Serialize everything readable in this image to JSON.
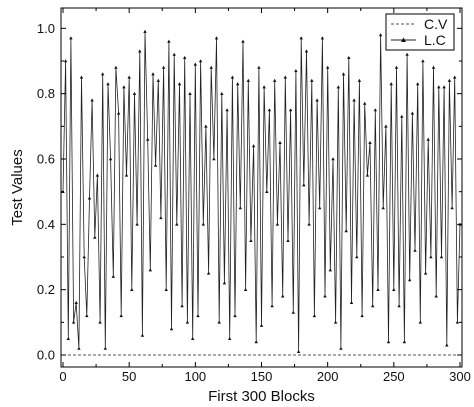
{
  "chart_data": {
    "type": "line",
    "xlabel": "First 300 Blocks",
    "ylabel": "Test Values",
    "xlim": [
      0,
      300
    ],
    "ylim": [
      0,
      1.05
    ],
    "xticks": [
      0,
      50,
      100,
      150,
      200,
      250,
      300
    ],
    "yticks": [
      0.0,
      0.2,
      0.4,
      0.6,
      0.8,
      1.0
    ],
    "xtick_labels": [
      "0",
      "50",
      "100",
      "150",
      "200",
      "250",
      "300"
    ],
    "ytick_labels": [
      "0.0",
      "0.2",
      "0.4",
      "0.6",
      "0.8",
      "1.0"
    ],
    "grid": false,
    "legend_position": "top-right",
    "series": [
      {
        "name": "C.V",
        "style": "dashed",
        "color": "#555555",
        "x": [
          0,
          300
        ],
        "y": [
          0.0,
          0.0
        ]
      },
      {
        "name": "L.C",
        "style": "solid-triangle-markers",
        "color": "#222222",
        "x": [
          0,
          2,
          4,
          6,
          8,
          10,
          12,
          14,
          16,
          18,
          20,
          22,
          24,
          26,
          28,
          30,
          32,
          34,
          36,
          38,
          40,
          42,
          44,
          46,
          48,
          50,
          52,
          54,
          56,
          58,
          60,
          62,
          64,
          66,
          68,
          70,
          72,
          74,
          76,
          78,
          80,
          82,
          84,
          86,
          88,
          90,
          92,
          94,
          96,
          98,
          100,
          102,
          104,
          106,
          108,
          110,
          112,
          114,
          116,
          118,
          120,
          122,
          124,
          126,
          128,
          130,
          132,
          134,
          136,
          138,
          140,
          142,
          144,
          146,
          148,
          150,
          152,
          154,
          156,
          158,
          160,
          162,
          164,
          166,
          168,
          170,
          172,
          174,
          176,
          178,
          180,
          182,
          184,
          186,
          188,
          190,
          192,
          194,
          196,
          198,
          200,
          202,
          204,
          206,
          208,
          210,
          212,
          214,
          216,
          218,
          220,
          222,
          224,
          226,
          228,
          230,
          232,
          234,
          236,
          238,
          240,
          242,
          244,
          246,
          248,
          250,
          252,
          254,
          256,
          258,
          260,
          262,
          264,
          266,
          268,
          270,
          272,
          274,
          276,
          278,
          280,
          282,
          284,
          286,
          288,
          290,
          292,
          294,
          296,
          298,
          300
        ],
        "y": [
          0.5,
          0.9,
          0.05,
          0.97,
          0.1,
          0.16,
          0.02,
          0.85,
          0.3,
          0.12,
          0.48,
          0.78,
          0.36,
          0.55,
          0.1,
          0.86,
          0.02,
          0.83,
          0.6,
          0.24,
          0.88,
          0.74,
          0.12,
          0.82,
          0.55,
          0.85,
          0.2,
          0.8,
          0.4,
          0.93,
          0.06,
          0.99,
          0.66,
          0.26,
          0.86,
          0.58,
          0.84,
          0.42,
          0.88,
          0.2,
          0.96,
          0.08,
          0.92,
          0.4,
          0.83,
          0.15,
          0.91,
          0.1,
          0.8,
          0.05,
          0.89,
          0.12,
          0.9,
          0.4,
          0.7,
          0.25,
          0.88,
          0.6,
          0.97,
          0.1,
          0.8,
          0.22,
          0.75,
          0.05,
          0.85,
          0.12,
          0.83,
          0.45,
          0.96,
          0.2,
          0.84,
          0.35,
          0.64,
          0.04,
          0.88,
          0.09,
          0.82,
          0.5,
          0.75,
          0.15,
          0.84,
          0.4,
          0.65,
          0.18,
          0.85,
          0.35,
          0.75,
          0.13,
          0.87,
          0.01,
          0.97,
          0.52,
          0.93,
          0.4,
          0.84,
          0.12,
          0.78,
          0.45,
          0.97,
          0.18,
          0.88,
          0.26,
          0.6,
          0.1,
          0.82,
          0.02,
          0.86,
          0.38,
          0.91,
          0.16,
          0.78,
          0.3,
          0.84,
          0.12,
          0.77,
          0.55,
          0.65,
          0.15,
          0.75,
          0.2,
          0.98,
          0.45,
          0.7,
          0.04,
          0.83,
          0.2,
          0.88,
          0.15,
          0.73,
          0.04,
          0.92,
          0.23,
          0.74,
          0.32,
          0.83,
          0.1,
          0.9,
          0.25,
          0.66,
          0.3,
          0.88,
          0.18,
          0.82,
          0.3,
          0.82,
          0.03,
          0.84,
          0.45,
          0.85,
          0.1,
          0.4
        ]
      }
    ]
  }
}
